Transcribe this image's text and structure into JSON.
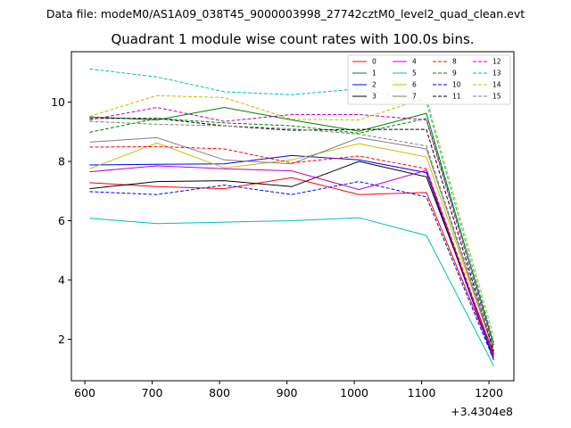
{
  "chart_data": {
    "type": "line",
    "suptitle": "Data file: modeM0/AS1A09_038T45_9000003998_27742cztM0_level2_quad_clean.evt",
    "title": "Quadrant 1 module wise count rates with 100.0s bins.",
    "xlabel": "",
    "ylabel": "",
    "x_offset_label": "+3.4304e8",
    "x": [
      607,
      707,
      807,
      907,
      1007,
      1107,
      1207
    ],
    "xlim": [
      580,
      1237
    ],
    "ylim": [
      0.6,
      11.7
    ],
    "xticks": [
      600,
      700,
      800,
      900,
      1000,
      1100,
      1200
    ],
    "xtick_labels": [
      "600",
      "700",
      "800",
      "900",
      "1000",
      "1100",
      "1200"
    ],
    "yticks": [
      2,
      4,
      6,
      8,
      10
    ],
    "ytick_labels": [
      "2",
      "4",
      "6",
      "8",
      "10"
    ],
    "grid": false,
    "legend_position": "top-right",
    "series": [
      {
        "name": "0",
        "color": "#ff0000",
        "dash": "solid",
        "values": [
          7.28,
          7.15,
          7.08,
          7.45,
          6.88,
          6.95,
          1.4
        ]
      },
      {
        "name": "1",
        "color": "#008000",
        "dash": "solid",
        "values": [
          9.5,
          9.4,
          9.82,
          9.4,
          9.02,
          9.62,
          1.8
        ]
      },
      {
        "name": "2",
        "color": "#0000ff",
        "dash": "solid",
        "values": [
          7.88,
          7.9,
          7.92,
          8.2,
          8.05,
          7.62,
          1.3
        ]
      },
      {
        "name": "3",
        "color": "#000000",
        "dash": "solid",
        "values": [
          7.08,
          7.32,
          7.35,
          7.15,
          8.0,
          7.48,
          1.5
        ]
      },
      {
        "name": "4",
        "color": "#bf00bf",
        "dash": "solid",
        "values": [
          7.65,
          7.85,
          7.75,
          7.68,
          7.05,
          7.7,
          1.4
        ]
      },
      {
        "name": "5",
        "color": "#00bfbf",
        "dash": "solid",
        "values": [
          6.08,
          5.9,
          5.95,
          6.0,
          6.1,
          5.5,
          1.1
        ]
      },
      {
        "name": "6",
        "color": "#bfbf00",
        "dash": "solid",
        "values": [
          7.75,
          8.62,
          7.78,
          8.05,
          8.6,
          8.15,
          1.6
        ]
      },
      {
        "name": "7",
        "color": "#808080",
        "dash": "solid",
        "values": [
          8.65,
          8.8,
          8.05,
          7.92,
          8.8,
          8.42,
          1.6
        ]
      },
      {
        "name": "8",
        "color": "#ff0000",
        "dash": "dashed",
        "values": [
          8.48,
          8.5,
          8.42,
          7.95,
          8.18,
          7.75,
          1.45
        ]
      },
      {
        "name": "9",
        "color": "#008000",
        "dash": "dashed",
        "values": [
          8.98,
          9.45,
          9.3,
          9.2,
          8.95,
          9.45,
          1.9
        ]
      },
      {
        "name": "10",
        "color": "#0000ff",
        "dash": "dashed",
        "values": [
          6.98,
          6.88,
          7.2,
          6.88,
          7.32,
          6.8,
          1.3
        ]
      },
      {
        "name": "11",
        "color": "#000000",
        "dash": "dashed",
        "values": [
          9.45,
          9.45,
          9.2,
          9.05,
          9.08,
          9.08,
          1.6
        ]
      },
      {
        "name": "12",
        "color": "#bf00bf",
        "dash": "dashed",
        "values": [
          9.4,
          9.82,
          9.35,
          9.58,
          9.58,
          9.4,
          1.7
        ]
      },
      {
        "name": "13",
        "color": "#00bfbf",
        "dash": "dashed",
        "values": [
          11.12,
          10.85,
          10.35,
          10.25,
          10.45,
          10.0,
          1.9
        ]
      },
      {
        "name": "14",
        "color": "#bfbf00",
        "dash": "dashed",
        "values": [
          9.52,
          10.22,
          10.15,
          9.42,
          9.4,
          10.15,
          2.1
        ]
      },
      {
        "name": "15",
        "color": "#808080",
        "dash": "dashed",
        "values": [
          9.35,
          9.25,
          9.2,
          9.1,
          8.92,
          8.52,
          1.7
        ]
      }
    ]
  }
}
